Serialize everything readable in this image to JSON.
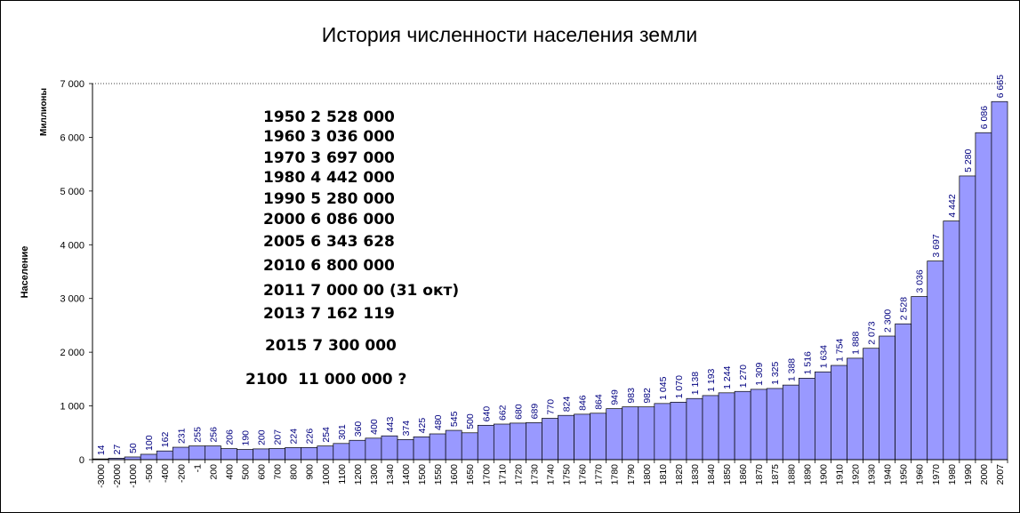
{
  "chart_data": {
    "type": "bar",
    "title": "История численности населения земли",
    "ylabel": "Население",
    "yunits": "Миллионы",
    "xlabel": "",
    "ylim": [
      0,
      7000
    ],
    "yticks": [
      0,
      1000,
      2000,
      3000,
      4000,
      5000,
      6000,
      7000
    ],
    "ytick_labels": [
      "0",
      "1 000",
      "2 000",
      "3 000",
      "4 000",
      "5 000",
      "6 000",
      "7 000"
    ],
    "grid": "dotted line at 7 000",
    "categories": [
      "-3000",
      "-2000",
      "-1000",
      "-500",
      "-400",
      "-200",
      "-1",
      "200",
      "400",
      "500",
      "600",
      "700",
      "800",
      "900",
      "1000",
      "1100",
      "1200",
      "1300",
      "1340",
      "1400",
      "1500",
      "1550",
      "1600",
      "1650",
      "1700",
      "1710",
      "1720",
      "1730",
      "1740",
      "1750",
      "1760",
      "1770",
      "1780",
      "1790",
      "1800",
      "1810",
      "1820",
      "1830",
      "1840",
      "1850",
      "1860",
      "1870",
      "1875",
      "1880",
      "1890",
      "1900",
      "1910",
      "1920",
      "1930",
      "1940",
      "1950",
      "1960",
      "1970",
      "1980",
      "1990",
      "2000",
      "2007"
    ],
    "values": [
      14,
      27,
      50,
      100,
      162,
      231,
      255,
      256,
      206,
      190,
      200,
      207,
      224,
      226,
      254,
      301,
      360,
      400,
      443,
      374,
      425,
      480,
      545,
      500,
      640,
      662,
      680,
      689,
      770,
      824,
      846,
      864,
      949,
      983,
      982,
      1045,
      1070,
      1138,
      1193,
      1244,
      1270,
      1309,
      1325,
      1388,
      1516,
      1634,
      1754,
      1888,
      2073,
      2300,
      2528,
      3036,
      3697,
      4442,
      5280,
      6086,
      6665
    ],
    "value_labels": [
      "14",
      "27",
      "50",
      "100",
      "162",
      "231",
      "255",
      "256",
      "206",
      "190",
      "200",
      "207",
      "224",
      "226",
      "254",
      "301",
      "360",
      "400",
      "443",
      "374",
      "425",
      "480",
      "545",
      "500",
      "640",
      "662",
      "680",
      "689",
      "770",
      "824",
      "846",
      "864",
      "949",
      "983",
      "982",
      "1 045",
      "1 070",
      "1 138",
      "1 193",
      "1 244",
      "1 270",
      "1 309",
      "1 325",
      "1 388",
      "1 516",
      "1 634",
      "1 754",
      "1 888",
      "2 073",
      "2 300",
      "2 528",
      "3 036",
      "3 697",
      "4 442",
      "5 280",
      "6 086",
      "6 665"
    ],
    "annotations": [
      "1950 2 528 000",
      "1960 3 036 000",
      "1970 3 697 000",
      "1980 4 442 000",
      "1990 5 280 000",
      "2000 6 086 000",
      "2005 6 343 628",
      "2010 6 800 000",
      "2011 7 000 00 (31 окт)",
      "2013 7 162 119",
      "2015 7 300 000",
      "2100  11 000 000 ?"
    ]
  },
  "colors": {
    "bar_fill": "#9999ff",
    "bar_stroke": "#000000",
    "data_label": "#000080",
    "background": "#ffffff"
  }
}
